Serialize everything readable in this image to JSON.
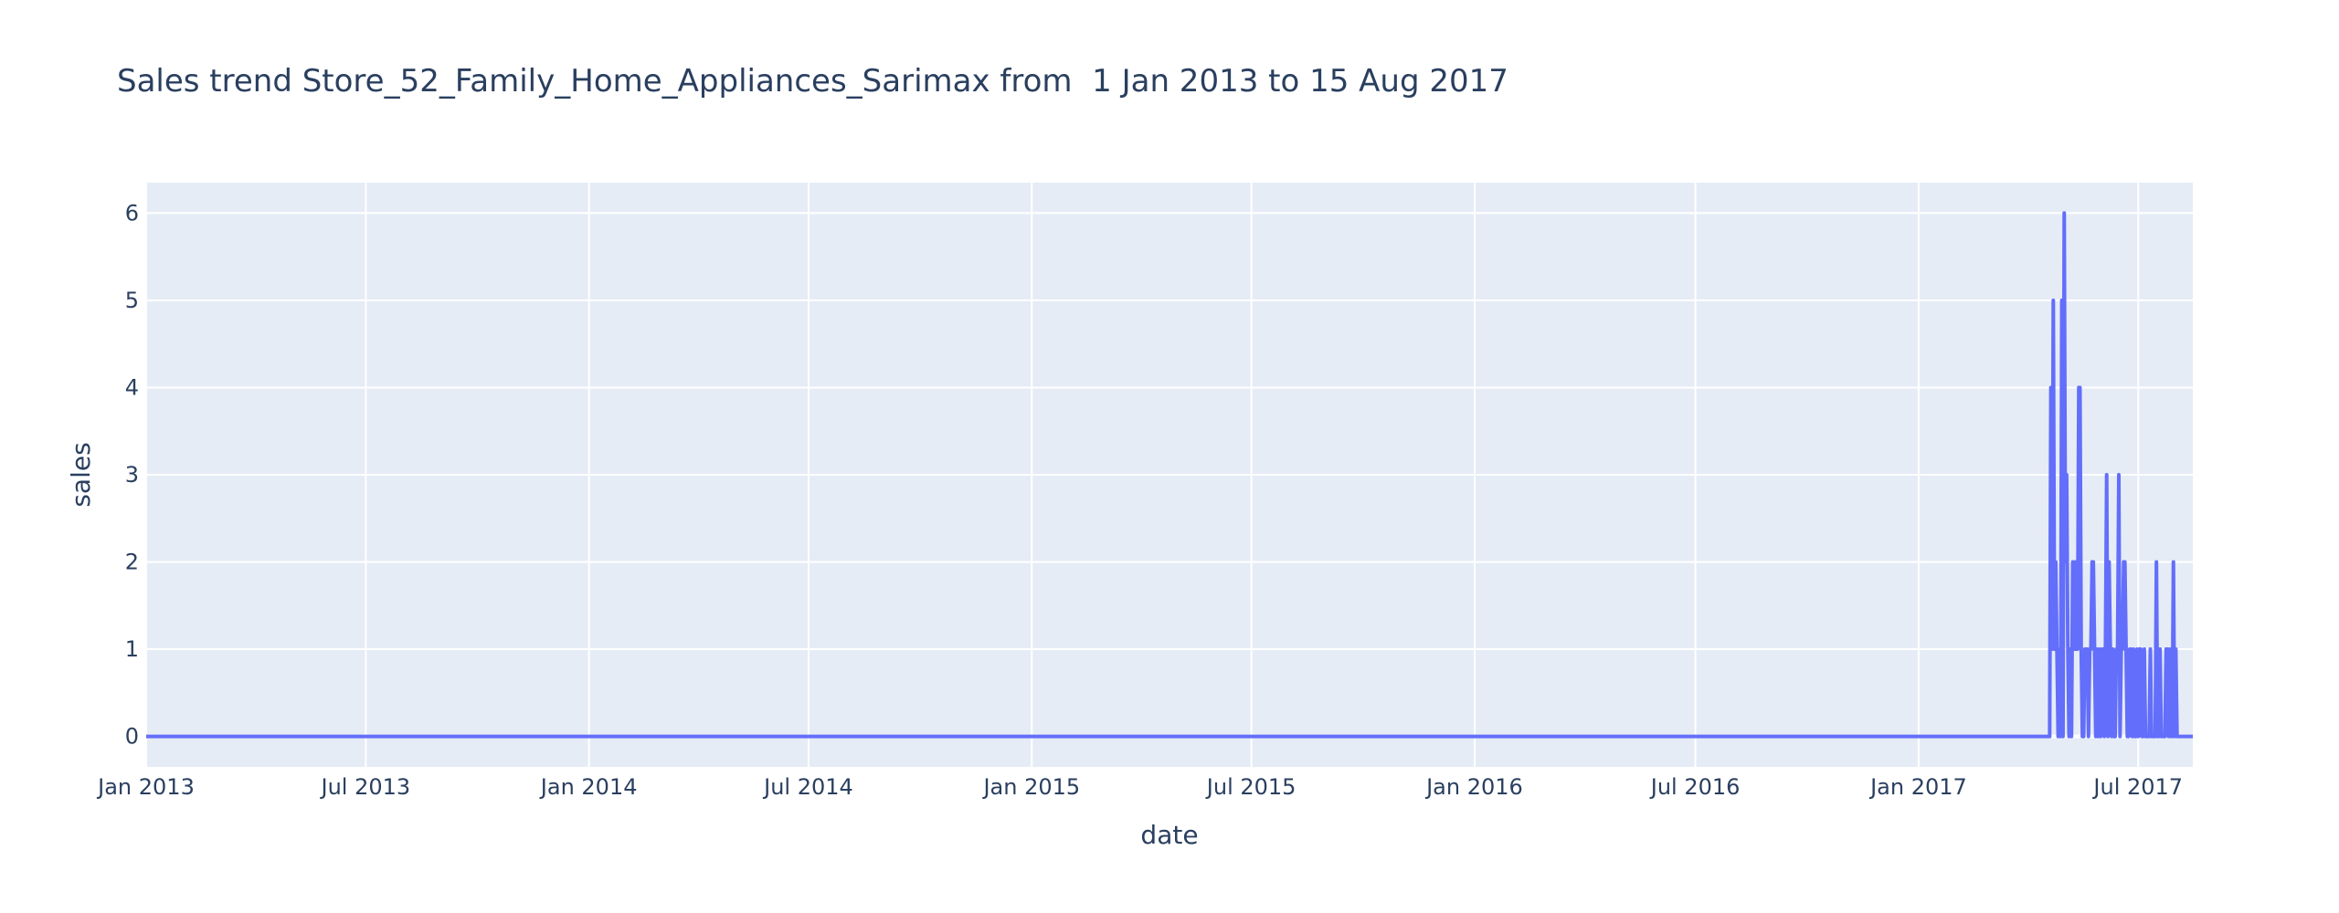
{
  "chart_data": {
    "type": "line",
    "title": "Sales trend Store_52_Family_Home_Appliances_Sarimax from  1 Jan 2013 to 15 Aug 2017",
    "xlabel": "date",
    "ylabel": "sales",
    "x_range": [
      "2013-01-01",
      "2017-08-15"
    ],
    "ylim": [
      -0.35,
      6.35
    ],
    "x_ticks": [
      {
        "date": "2013-01-01",
        "label": "Jan 2013"
      },
      {
        "date": "2013-07-01",
        "label": "Jul 2013"
      },
      {
        "date": "2014-01-01",
        "label": "Jan 2014"
      },
      {
        "date": "2014-07-01",
        "label": "Jul 2014"
      },
      {
        "date": "2015-01-01",
        "label": "Jan 2015"
      },
      {
        "date": "2015-07-01",
        "label": "Jul 2015"
      },
      {
        "date": "2016-01-01",
        "label": "Jan 2016"
      },
      {
        "date": "2016-07-01",
        "label": "Jul 2016"
      },
      {
        "date": "2017-01-01",
        "label": "Jan 2017"
      },
      {
        "date": "2017-07-01",
        "label": "Jul 2017"
      }
    ],
    "y_ticks": [
      0,
      1,
      2,
      3,
      4,
      5,
      6
    ],
    "grid": true,
    "line_color": "#636efa",
    "plot_bg": "#e5ecf6",
    "series": [
      {
        "x": [
          "2013-01-01",
          "2017-04-19",
          "2017-04-20",
          "2017-04-21",
          "2017-04-22",
          "2017-04-23",
          "2017-04-24",
          "2017-04-25",
          "2017-04-26",
          "2017-04-27",
          "2017-04-28",
          "2017-04-29",
          "2017-04-30",
          "2017-05-01",
          "2017-05-02",
          "2017-05-03",
          "2017-05-04",
          "2017-05-05",
          "2017-05-06",
          "2017-05-07",
          "2017-05-08",
          "2017-05-09",
          "2017-05-10",
          "2017-05-11",
          "2017-05-12",
          "2017-05-13",
          "2017-05-14",
          "2017-05-15",
          "2017-05-16",
          "2017-05-17",
          "2017-05-18",
          "2017-05-19",
          "2017-05-20",
          "2017-05-21",
          "2017-05-22",
          "2017-05-23",
          "2017-05-24",
          "2017-05-25",
          "2017-05-26",
          "2017-05-27",
          "2017-05-28",
          "2017-05-29",
          "2017-05-30",
          "2017-05-31",
          "2017-06-01",
          "2017-06-02",
          "2017-06-03",
          "2017-06-04",
          "2017-06-05",
          "2017-06-06",
          "2017-06-07",
          "2017-06-08",
          "2017-06-09",
          "2017-06-10",
          "2017-06-11",
          "2017-06-12",
          "2017-06-13",
          "2017-06-14",
          "2017-06-15",
          "2017-06-16",
          "2017-06-17",
          "2017-06-18",
          "2017-06-19",
          "2017-06-20",
          "2017-06-21",
          "2017-06-22",
          "2017-06-23",
          "2017-06-24",
          "2017-06-25",
          "2017-06-26",
          "2017-06-27",
          "2017-06-28",
          "2017-06-29",
          "2017-06-30",
          "2017-07-01",
          "2017-07-02",
          "2017-07-03",
          "2017-07-04",
          "2017-07-05",
          "2017-07-06",
          "2017-07-07",
          "2017-07-08",
          "2017-07-09",
          "2017-07-10",
          "2017-07-11",
          "2017-07-12",
          "2017-07-13",
          "2017-07-14",
          "2017-07-15",
          "2017-07-16",
          "2017-07-17",
          "2017-07-18",
          "2017-07-19",
          "2017-07-20",
          "2017-07-21",
          "2017-07-22",
          "2017-07-23",
          "2017-07-24",
          "2017-07-25",
          "2017-07-26",
          "2017-07-27",
          "2017-07-28",
          "2017-07-29",
          "2017-07-30",
          "2017-07-31",
          "2017-08-01",
          "2017-08-02",
          "2017-08-03",
          "2017-08-04",
          "2017-08-05",
          "2017-08-06",
          "2017-08-07",
          "2017-08-08",
          "2017-08-09",
          "2017-08-10",
          "2017-08-11",
          "2017-08-12",
          "2017-08-13",
          "2017-08-14",
          "2017-08-15"
        ],
        "y": [
          0,
          0,
          4,
          1,
          5,
          1,
          2,
          1,
          0,
          1,
          0,
          5,
          0,
          6,
          2,
          3,
          1,
          0,
          1,
          0,
          2,
          1,
          2,
          1,
          1,
          4,
          4,
          1,
          0,
          0,
          1,
          1,
          1,
          0,
          1,
          1,
          2,
          2,
          1,
          0,
          1,
          0,
          1,
          0,
          1,
          1,
          0,
          1,
          3,
          0,
          2,
          1,
          0,
          1,
          0,
          0,
          1,
          1,
          3,
          0,
          1,
          1,
          2,
          2,
          1,
          0,
          0,
          1,
          1,
          0,
          1,
          0,
          0,
          1,
          0,
          1,
          1,
          0,
          0,
          1,
          0,
          0,
          0,
          0,
          1,
          0,
          0,
          0,
          0,
          2,
          0,
          0,
          1,
          0,
          0,
          0,
          0,
          1,
          1,
          0,
          1,
          0,
          0,
          2,
          0,
          1,
          0,
          0,
          0,
          0,
          0,
          0,
          0,
          0,
          0,
          0,
          0,
          0,
          0,
          0
        ]
      }
    ]
  }
}
